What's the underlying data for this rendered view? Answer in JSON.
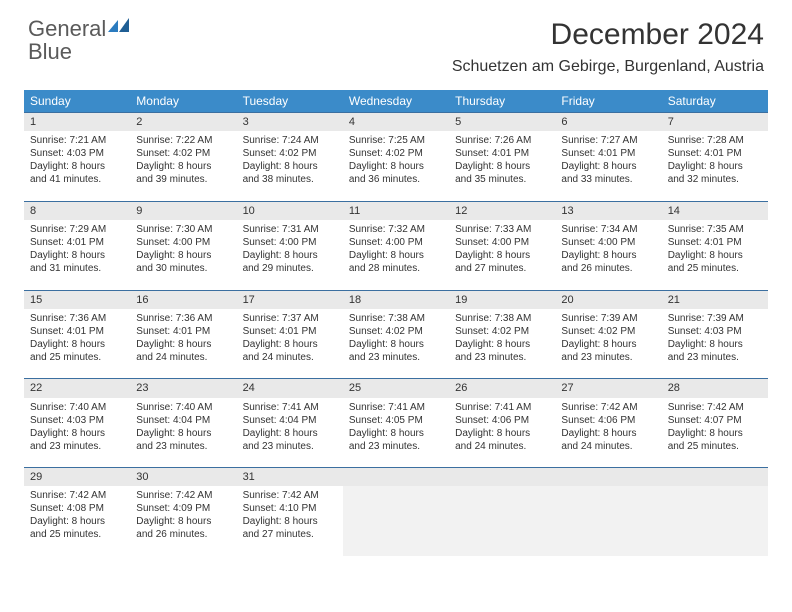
{
  "brand": {
    "word1": "General",
    "word2": "Blue"
  },
  "title": "December 2024",
  "location": "Schuetzen am Gebirge, Burgenland, Austria",
  "colors": {
    "header_bg": "#3b8bc9",
    "header_text": "#ffffff",
    "daynum_bg": "#e9e9e9",
    "cell_border": "#3b6fa0",
    "brand_gray": "#5a5a5a",
    "brand_blue": "#2b7bbf"
  },
  "day_headers": [
    "Sunday",
    "Monday",
    "Tuesday",
    "Wednesday",
    "Thursday",
    "Friday",
    "Saturday"
  ],
  "weeks": [
    [
      {
        "n": "1",
        "sr": "Sunrise: 7:21 AM",
        "ss": "Sunset: 4:03 PM",
        "d1": "Daylight: 8 hours",
        "d2": "and 41 minutes."
      },
      {
        "n": "2",
        "sr": "Sunrise: 7:22 AM",
        "ss": "Sunset: 4:02 PM",
        "d1": "Daylight: 8 hours",
        "d2": "and 39 minutes."
      },
      {
        "n": "3",
        "sr": "Sunrise: 7:24 AM",
        "ss": "Sunset: 4:02 PM",
        "d1": "Daylight: 8 hours",
        "d2": "and 38 minutes."
      },
      {
        "n": "4",
        "sr": "Sunrise: 7:25 AM",
        "ss": "Sunset: 4:02 PM",
        "d1": "Daylight: 8 hours",
        "d2": "and 36 minutes."
      },
      {
        "n": "5",
        "sr": "Sunrise: 7:26 AM",
        "ss": "Sunset: 4:01 PM",
        "d1": "Daylight: 8 hours",
        "d2": "and 35 minutes."
      },
      {
        "n": "6",
        "sr": "Sunrise: 7:27 AM",
        "ss": "Sunset: 4:01 PM",
        "d1": "Daylight: 8 hours",
        "d2": "and 33 minutes."
      },
      {
        "n": "7",
        "sr": "Sunrise: 7:28 AM",
        "ss": "Sunset: 4:01 PM",
        "d1": "Daylight: 8 hours",
        "d2": "and 32 minutes."
      }
    ],
    [
      {
        "n": "8",
        "sr": "Sunrise: 7:29 AM",
        "ss": "Sunset: 4:01 PM",
        "d1": "Daylight: 8 hours",
        "d2": "and 31 minutes."
      },
      {
        "n": "9",
        "sr": "Sunrise: 7:30 AM",
        "ss": "Sunset: 4:00 PM",
        "d1": "Daylight: 8 hours",
        "d2": "and 30 minutes."
      },
      {
        "n": "10",
        "sr": "Sunrise: 7:31 AM",
        "ss": "Sunset: 4:00 PM",
        "d1": "Daylight: 8 hours",
        "d2": "and 29 minutes."
      },
      {
        "n": "11",
        "sr": "Sunrise: 7:32 AM",
        "ss": "Sunset: 4:00 PM",
        "d1": "Daylight: 8 hours",
        "d2": "and 28 minutes."
      },
      {
        "n": "12",
        "sr": "Sunrise: 7:33 AM",
        "ss": "Sunset: 4:00 PM",
        "d1": "Daylight: 8 hours",
        "d2": "and 27 minutes."
      },
      {
        "n": "13",
        "sr": "Sunrise: 7:34 AM",
        "ss": "Sunset: 4:00 PM",
        "d1": "Daylight: 8 hours",
        "d2": "and 26 minutes."
      },
      {
        "n": "14",
        "sr": "Sunrise: 7:35 AM",
        "ss": "Sunset: 4:01 PM",
        "d1": "Daylight: 8 hours",
        "d2": "and 25 minutes."
      }
    ],
    [
      {
        "n": "15",
        "sr": "Sunrise: 7:36 AM",
        "ss": "Sunset: 4:01 PM",
        "d1": "Daylight: 8 hours",
        "d2": "and 25 minutes."
      },
      {
        "n": "16",
        "sr": "Sunrise: 7:36 AM",
        "ss": "Sunset: 4:01 PM",
        "d1": "Daylight: 8 hours",
        "d2": "and 24 minutes."
      },
      {
        "n": "17",
        "sr": "Sunrise: 7:37 AM",
        "ss": "Sunset: 4:01 PM",
        "d1": "Daylight: 8 hours",
        "d2": "and 24 minutes."
      },
      {
        "n": "18",
        "sr": "Sunrise: 7:38 AM",
        "ss": "Sunset: 4:02 PM",
        "d1": "Daylight: 8 hours",
        "d2": "and 23 minutes."
      },
      {
        "n": "19",
        "sr": "Sunrise: 7:38 AM",
        "ss": "Sunset: 4:02 PM",
        "d1": "Daylight: 8 hours",
        "d2": "and 23 minutes."
      },
      {
        "n": "20",
        "sr": "Sunrise: 7:39 AM",
        "ss": "Sunset: 4:02 PM",
        "d1": "Daylight: 8 hours",
        "d2": "and 23 minutes."
      },
      {
        "n": "21",
        "sr": "Sunrise: 7:39 AM",
        "ss": "Sunset: 4:03 PM",
        "d1": "Daylight: 8 hours",
        "d2": "and 23 minutes."
      }
    ],
    [
      {
        "n": "22",
        "sr": "Sunrise: 7:40 AM",
        "ss": "Sunset: 4:03 PM",
        "d1": "Daylight: 8 hours",
        "d2": "and 23 minutes."
      },
      {
        "n": "23",
        "sr": "Sunrise: 7:40 AM",
        "ss": "Sunset: 4:04 PM",
        "d1": "Daylight: 8 hours",
        "d2": "and 23 minutes."
      },
      {
        "n": "24",
        "sr": "Sunrise: 7:41 AM",
        "ss": "Sunset: 4:04 PM",
        "d1": "Daylight: 8 hours",
        "d2": "and 23 minutes."
      },
      {
        "n": "25",
        "sr": "Sunrise: 7:41 AM",
        "ss": "Sunset: 4:05 PM",
        "d1": "Daylight: 8 hours",
        "d2": "and 23 minutes."
      },
      {
        "n": "26",
        "sr": "Sunrise: 7:41 AM",
        "ss": "Sunset: 4:06 PM",
        "d1": "Daylight: 8 hours",
        "d2": "and 24 minutes."
      },
      {
        "n": "27",
        "sr": "Sunrise: 7:42 AM",
        "ss": "Sunset: 4:06 PM",
        "d1": "Daylight: 8 hours",
        "d2": "and 24 minutes."
      },
      {
        "n": "28",
        "sr": "Sunrise: 7:42 AM",
        "ss": "Sunset: 4:07 PM",
        "d1": "Daylight: 8 hours",
        "d2": "and 25 minutes."
      }
    ],
    [
      {
        "n": "29",
        "sr": "Sunrise: 7:42 AM",
        "ss": "Sunset: 4:08 PM",
        "d1": "Daylight: 8 hours",
        "d2": "and 25 minutes."
      },
      {
        "n": "30",
        "sr": "Sunrise: 7:42 AM",
        "ss": "Sunset: 4:09 PM",
        "d1": "Daylight: 8 hours",
        "d2": "and 26 minutes."
      },
      {
        "n": "31",
        "sr": "Sunrise: 7:42 AM",
        "ss": "Sunset: 4:10 PM",
        "d1": "Daylight: 8 hours",
        "d2": "and 27 minutes."
      },
      null,
      null,
      null,
      null
    ]
  ]
}
